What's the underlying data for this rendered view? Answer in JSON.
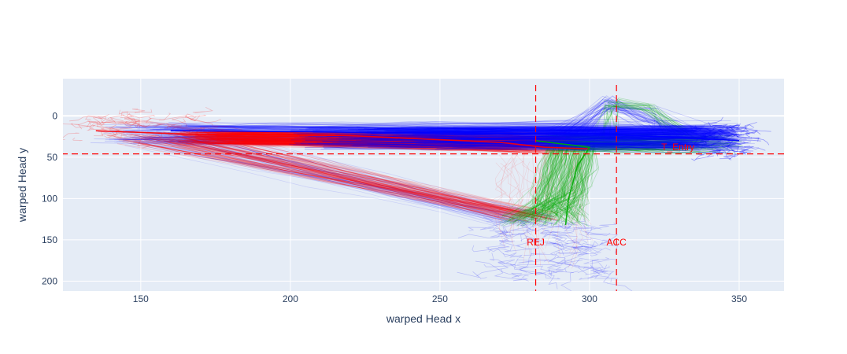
{
  "chart_data": {
    "type": "line",
    "title": "",
    "xlabel": "warped Head x",
    "ylabel": "warped Head y",
    "xlim": [
      124,
      365
    ],
    "ylim": [
      212,
      -45
    ],
    "y_reversed": true,
    "grid": true,
    "legend": "none",
    "x_ticks": [
      150,
      200,
      250,
      300,
      350
    ],
    "y_ticks": [
      0,
      50,
      100,
      150,
      200
    ],
    "plot_background": "#e5ecf6",
    "series": [
      {
        "color": "#ff0000",
        "values": [
          {
            "x": 135,
            "y": 18
          },
          {
            "x": 165,
            "y": 22
          },
          {
            "x": 220,
            "y": 24
          },
          {
            "x": 270,
            "y": 32
          },
          {
            "x": 285,
            "y": 38
          },
          {
            "x": 300,
            "y": 40
          }
        ]
      },
      {
        "color": "#00aa00",
        "values": [
          {
            "x": 282,
            "y": 30
          },
          {
            "x": 300,
            "y": 38
          },
          {
            "x": 296,
            "y": 60
          },
          {
            "x": 293,
            "y": 100
          },
          {
            "x": 292,
            "y": 132
          }
        ]
      },
      {
        "color": "#0000ff",
        "values": [
          {
            "x": 160,
            "y": 18
          },
          {
            "x": 230,
            "y": 20
          },
          {
            "x": 300,
            "y": 22
          },
          {
            "x": 330,
            "y": 26
          },
          {
            "x": 350,
            "y": 30
          }
        ]
      }
    ],
    "reference_lines": [
      {
        "orientation": "vertical",
        "value": 282,
        "color": "#ff0000",
        "dash": true
      },
      {
        "orientation": "vertical",
        "value": 309,
        "color": "#ff0000",
        "dash": true
      },
      {
        "orientation": "horizontal",
        "value": 46,
        "color": "#ff0000",
        "dash": true
      }
    ],
    "annotations": [
      {
        "text": "REJ",
        "x": 282,
        "y": 153,
        "color": "#ff0000"
      },
      {
        "text": "ACC",
        "x": 309,
        "y": 153,
        "color": "#ff0000"
      },
      {
        "text": "T_Entry",
        "x": 324,
        "y": 38,
        "color": "#ff0000"
      }
    ]
  }
}
